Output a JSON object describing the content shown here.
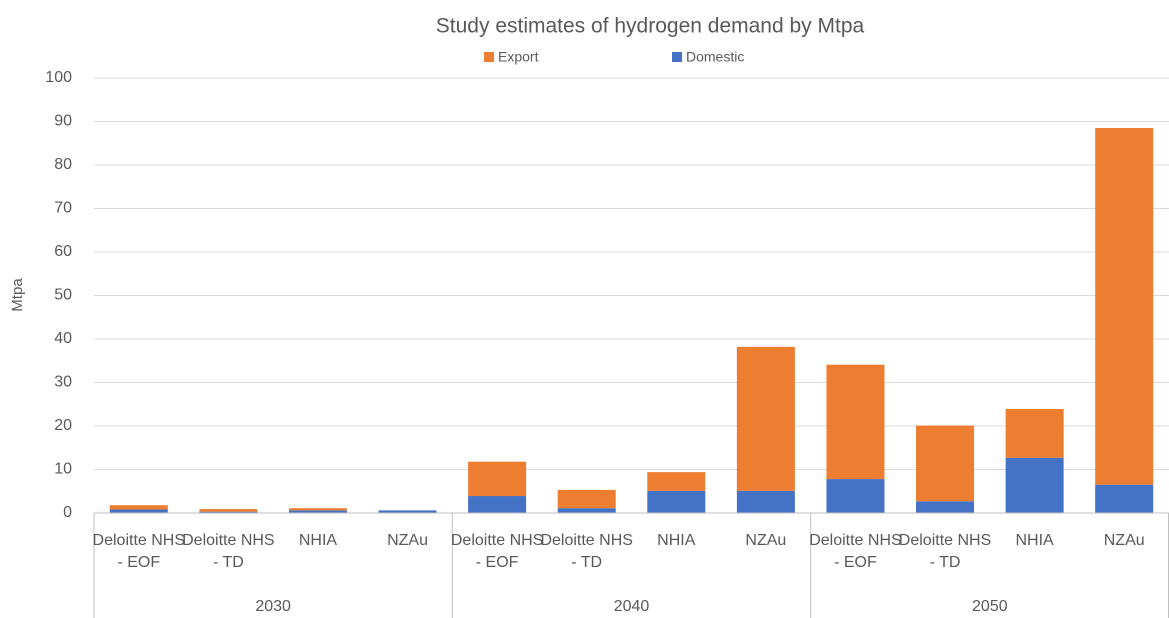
{
  "chart_data": {
    "type": "stacked_bar",
    "title": "Study estimates of hydrogen demand by Mtpa",
    "y_label": "Mtpa",
    "categories": [
      "Deloitte NHS - EOF",
      "Deloitte NHS - TD",
      "NHIA",
      "NZAu",
      "Deloitte NHS - EOF",
      "Deloitte NHS - TD",
      "NHIA",
      "NZAu",
      "Deloitte NHS - EOF",
      "Deloitte NHS - TD",
      "NHIA",
      "NZAu"
    ],
    "groups": [
      "2030",
      "2040",
      "2050"
    ],
    "series": [
      {
        "name": "Export",
        "color": "#ed7d31",
        "values": [
          1.0,
          0.6,
          0.5,
          0,
          7.9,
          4.2,
          4.3,
          33.1,
          26.3,
          17.4,
          11.2,
          82.0
        ]
      },
      {
        "name": "Domestic",
        "color": "#4472c4",
        "values": [
          0.8,
          0.3,
          0.6,
          0.6,
          3.9,
          1.1,
          5.1,
          5.1,
          7.8,
          2.7,
          12.7,
          6.5
        ]
      }
    ],
    "ylim": [
      0,
      100
    ],
    "yticks": [
      0,
      10,
      20,
      30,
      40,
      50,
      60,
      70,
      80,
      90,
      100
    ],
    "grid": true,
    "legend": "top"
  }
}
